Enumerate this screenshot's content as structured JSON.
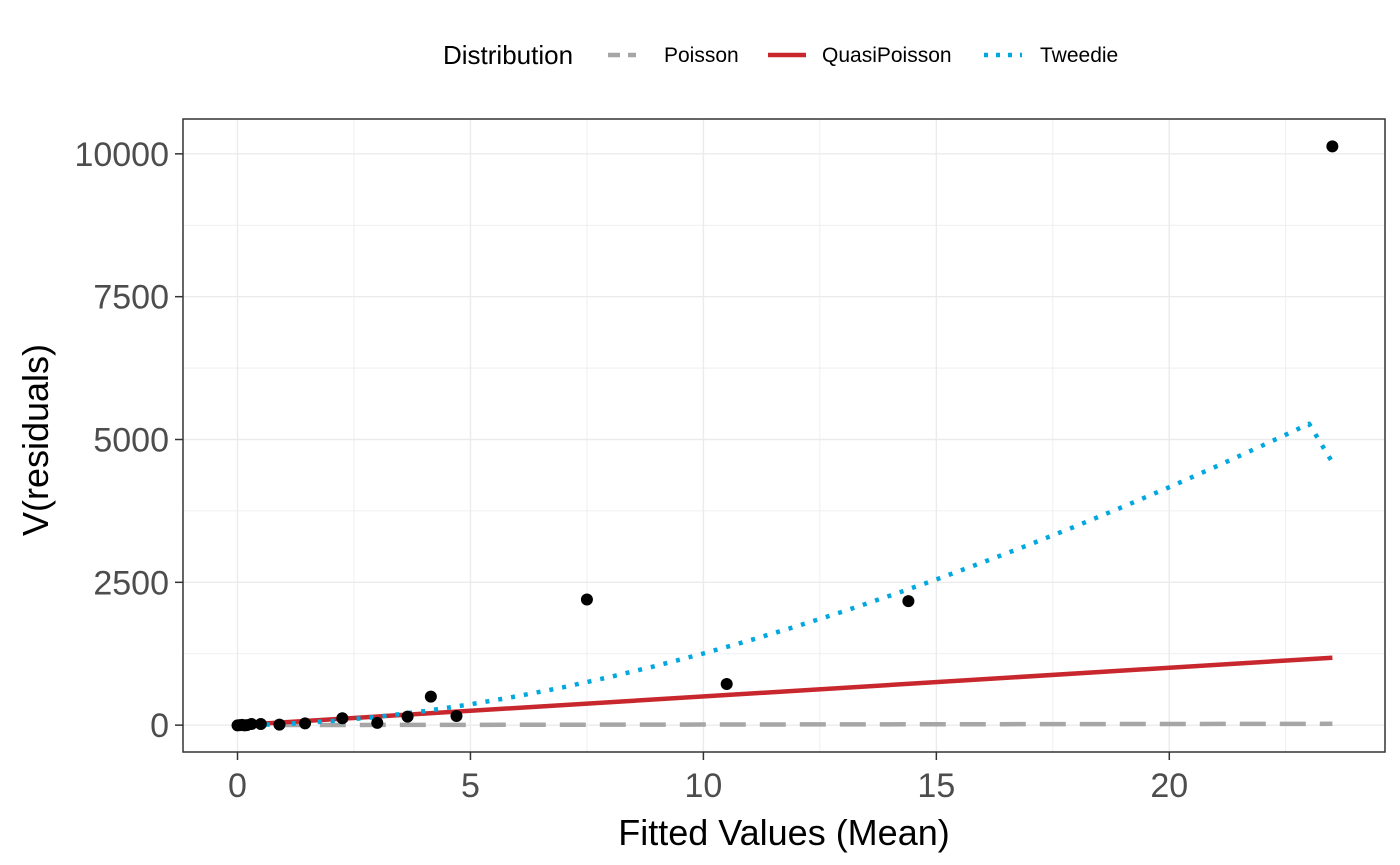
{
  "chart_data": {
    "type": "scatter",
    "title": "",
    "xlabel": "Fitted Values (Mean)",
    "ylabel": "V(residuals)",
    "xlim": [
      -1.17,
      24.63
    ],
    "ylim": [
      -470,
      10610
    ],
    "x_ticks": [
      0,
      5,
      10,
      15,
      20
    ],
    "x_tick_labels": [
      "0",
      "5",
      "10",
      "15",
      "20"
    ],
    "y_ticks": [
      0,
      2500,
      5000,
      7500,
      10000
    ],
    "y_tick_labels": [
      "0",
      "2500",
      "5000",
      "7500",
      "10000"
    ],
    "grid": true,
    "legend": {
      "title": "Distribution",
      "position": "top",
      "entries": [
        {
          "name": "Poisson",
          "color": "#a6a6a6",
          "style": "dashed"
        },
        {
          "name": "QuasiPoisson",
          "color": "#c8282d",
          "style": "solid"
        },
        {
          "name": "Tweedie",
          "color": "#00a8e0",
          "style": "dotted"
        }
      ]
    },
    "points": {
      "x": [
        0.0,
        0.05,
        0.1,
        0.15,
        0.2,
        0.3,
        0.5,
        0.9,
        1.45,
        2.25,
        3.0,
        3.65,
        4.15,
        4.7,
        7.5,
        10.5,
        14.4,
        23.5
      ],
      "y": [
        -5,
        0,
        5,
        -3,
        0,
        20,
        20,
        10,
        30,
        120,
        40,
        150,
        500,
        160,
        2200,
        720,
        2170,
        10130
      ],
      "color": "#000000"
    },
    "series": [
      {
        "name": "Poisson",
        "x": [
          0.05,
          23.5
        ],
        "y": [
          0.05,
          23.5
        ],
        "color": "#a6a6a6",
        "style": "dashed"
      },
      {
        "name": "QuasiPoisson",
        "x": [
          0.05,
          23.5
        ],
        "y": [
          2.5,
          1180
        ],
        "color": "#c8282d",
        "style": "solid"
      },
      {
        "name": "Tweedie",
        "x": [
          0.05,
          0.5,
          1,
          2,
          3,
          4,
          5,
          6,
          7,
          8,
          9,
          10,
          11,
          12,
          13,
          14,
          15,
          16,
          17,
          18,
          19,
          20,
          21,
          22,
          23,
          23.5
        ],
        "y": [
          0.1,
          6,
          20,
          70,
          145,
          245,
          365,
          505,
          665,
          845,
          1040,
          1255,
          1485,
          1730,
          1990,
          2265,
          2550,
          2850,
          3160,
          3485,
          3820,
          4165,
          4525,
          4895,
          5275,
          4600
        ],
        "color": "#00a8e0",
        "style": "dotted"
      }
    ]
  }
}
